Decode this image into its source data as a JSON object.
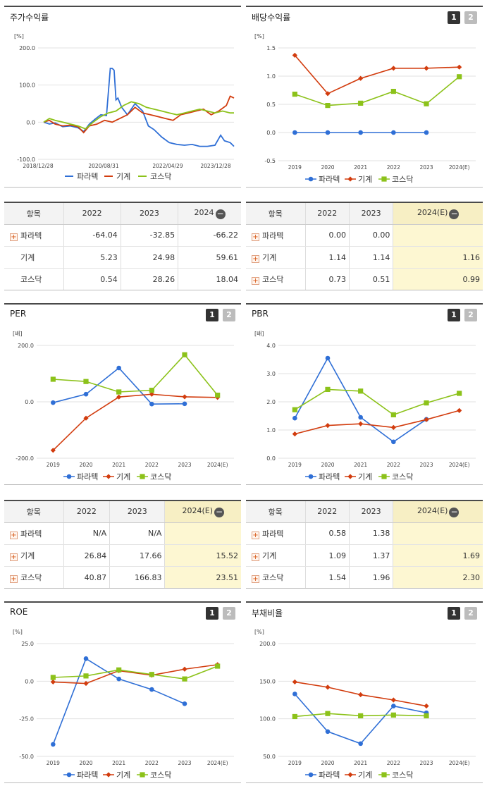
{
  "colors": {
    "para": "#2f6fd6",
    "machine": "#d23c0e",
    "kosdaq": "#8cc21a"
  },
  "legend": [
    "파라텍",
    "기계",
    "코스닥"
  ],
  "panels": {
    "stock": {
      "title": "주가수익률",
      "unit": "[%]",
      "yticks": [
        "200.0",
        "100.0",
        "0.0",
        "-100.0"
      ],
      "xticks": [
        "2018/12/28",
        "2020/08/31",
        "2022/04/29",
        "2023/12/28"
      ]
    },
    "dividend": {
      "title": "배당수익률",
      "unit": "[%]",
      "yticks": [
        "1.5",
        "1.0",
        "0.5",
        "0.0",
        "-0.5"
      ],
      "btn1": "1",
      "btn2": "2"
    },
    "per": {
      "title": "PER",
      "unit": "[배]",
      "yticks": [
        "200.0",
        "0.0",
        "-200.0"
      ],
      "btn1": "1",
      "btn2": "2"
    },
    "pbr": {
      "title": "PBR",
      "unit": "[배]",
      "yticks": [
        "4.0",
        "3.0",
        "2.0",
        "1.0",
        "0.0"
      ],
      "btn1": "1",
      "btn2": "2"
    },
    "roe": {
      "title": "ROE",
      "unit": "[%]",
      "yticks": [
        "25.0",
        "0.0",
        "-25.0",
        "-50.0"
      ],
      "btn1": "1",
      "btn2": "2"
    },
    "debt": {
      "title": "부채비율",
      "unit": "[%]",
      "yticks": [
        "200.0",
        "150.0",
        "100.0",
        "50.0"
      ],
      "btn1": "1",
      "btn2": "2"
    }
  },
  "tables": {
    "stock": {
      "headers": [
        "항목",
        "2022",
        "2023",
        "2024"
      ],
      "rows": [
        {
          "name": "파라텍",
          "v": [
            "-64.04",
            "-32.85",
            "-66.22"
          ]
        },
        {
          "name": "기계",
          "v": [
            "5.23",
            "24.98",
            "59.61"
          ]
        },
        {
          "name": "코스닥",
          "v": [
            "0.54",
            "28.26",
            "18.04"
          ]
        }
      ]
    },
    "dividend": {
      "headers": [
        "항목",
        "2022",
        "2023",
        "2024(E)"
      ],
      "rows": [
        {
          "name": "파라텍",
          "v": [
            "0.00",
            "0.00",
            ""
          ]
        },
        {
          "name": "기계",
          "v": [
            "1.14",
            "1.14",
            "1.16"
          ]
        },
        {
          "name": "코스닥",
          "v": [
            "0.73",
            "0.51",
            "0.99"
          ]
        }
      ]
    },
    "per": {
      "headers": [
        "항목",
        "2022",
        "2023",
        "2024(E)"
      ],
      "rows": [
        {
          "name": "파라텍",
          "v": [
            "N/A",
            "N/A",
            ""
          ]
        },
        {
          "name": "기계",
          "v": [
            "26.84",
            "17.66",
            "15.52"
          ]
        },
        {
          "name": "코스닥",
          "v": [
            "40.87",
            "166.83",
            "23.51"
          ]
        }
      ]
    },
    "pbr": {
      "headers": [
        "항목",
        "2022",
        "2023",
        "2024(E)"
      ],
      "rows": [
        {
          "name": "파라텍",
          "v": [
            "0.58",
            "1.38",
            ""
          ]
        },
        {
          "name": "기계",
          "v": [
            "1.09",
            "1.37",
            "1.69"
          ]
        },
        {
          "name": "코스닥",
          "v": [
            "1.54",
            "1.96",
            "2.30"
          ]
        }
      ]
    }
  },
  "chart_data": [
    {
      "id": "stock",
      "type": "line",
      "title": "주가수익률",
      "ylabel": "[%]",
      "ylim": [
        -100,
        200
      ],
      "x_range": [
        "2018/12/28",
        "2024/06"
      ],
      "series": [
        {
          "name": "파라텍",
          "x": [
            0,
            0.03,
            0.06,
            0.1,
            0.14,
            0.18,
            0.21,
            0.24,
            0.27,
            0.3,
            0.33,
            0.35,
            0.36,
            0.37,
            0.38,
            0.39,
            0.41,
            0.44,
            0.48,
            0.52,
            0.55,
            0.58,
            0.62,
            0.66,
            0.7,
            0.74,
            0.78,
            0.82,
            0.86,
            0.9,
            0.93,
            0.95,
            0.98,
            1
          ],
          "y": [
            0,
            -5,
            -2,
            -12,
            -10,
            -15,
            -25,
            -5,
            8,
            20,
            18,
            145,
            145,
            140,
            60,
            65,
            40,
            20,
            50,
            30,
            -10,
            -20,
            -40,
            -55,
            -60,
            -62,
            -60,
            -65,
            -65,
            -62,
            -35,
            -50,
            -55,
            -65
          ]
        },
        {
          "name": "기계",
          "x": [
            0,
            0.03,
            0.06,
            0.1,
            0.14,
            0.18,
            0.21,
            0.24,
            0.28,
            0.32,
            0.36,
            0.4,
            0.44,
            0.48,
            0.52,
            0.56,
            0.6,
            0.64,
            0.68,
            0.72,
            0.76,
            0.8,
            0.84,
            0.88,
            0.92,
            0.96,
            0.98,
            1
          ],
          "y": [
            0,
            5,
            -5,
            -10,
            -8,
            -12,
            -28,
            -10,
            -5,
            5,
            0,
            10,
            20,
            40,
            25,
            20,
            15,
            10,
            5,
            20,
            25,
            30,
            35,
            20,
            30,
            45,
            70,
            65
          ]
        },
        {
          "name": "코스닥",
          "x": [
            0,
            0.03,
            0.06,
            0.1,
            0.14,
            0.18,
            0.22,
            0.26,
            0.3,
            0.34,
            0.38,
            0.42,
            0.46,
            0.5,
            0.54,
            0.58,
            0.62,
            0.66,
            0.7,
            0.74,
            0.78,
            0.82,
            0.86,
            0.9,
            0.94,
            0.98,
            1
          ],
          "y": [
            0,
            10,
            5,
            0,
            -5,
            -10,
            -18,
            0,
            15,
            25,
            30,
            45,
            55,
            50,
            40,
            35,
            30,
            25,
            20,
            25,
            30,
            35,
            30,
            25,
            30,
            25,
            25
          ]
        }
      ]
    },
    {
      "id": "dividend",
      "type": "line",
      "title": "배당수익률",
      "ylabel": "[%]",
      "ylim": [
        -0.5,
        1.5
      ],
      "categories": [
        "2019",
        "2020",
        "2021",
        "2022",
        "2023",
        "2024(E)"
      ],
      "series": [
        {
          "name": "파라텍",
          "values": [
            0,
            0,
            0,
            0,
            0,
            null
          ]
        },
        {
          "name": "기계",
          "values": [
            1.37,
            0.69,
            0.96,
            1.14,
            1.14,
            1.16
          ]
        },
        {
          "name": "코스닥",
          "values": [
            0.68,
            0.48,
            0.52,
            0.73,
            0.51,
            0.99
          ]
        }
      ]
    },
    {
      "id": "per",
      "type": "line",
      "title": "PER",
      "ylabel": "[배]",
      "ylim": [
        -200,
        200
      ],
      "categories": [
        "2019",
        "2020",
        "2021",
        "2022",
        "2023",
        "2024(E)"
      ],
      "series": [
        {
          "name": "파라텍",
          "values": [
            -3,
            27,
            120,
            -8,
            -7,
            null
          ]
        },
        {
          "name": "기계",
          "values": [
            -172,
            -58,
            17,
            26.84,
            17.66,
            15.52
          ]
        },
        {
          "name": "코스닥",
          "values": [
            80,
            72,
            35,
            40.87,
            166.83,
            23.51
          ]
        }
      ]
    },
    {
      "id": "pbr",
      "type": "line",
      "title": "PBR",
      "ylabel": "[배]",
      "ylim": [
        0,
        4
      ],
      "categories": [
        "2019",
        "2020",
        "2021",
        "2022",
        "2023",
        "2024(E)"
      ],
      "series": [
        {
          "name": "파라텍",
          "values": [
            1.42,
            3.55,
            1.45,
            0.58,
            1.38,
            null
          ]
        },
        {
          "name": "기계",
          "values": [
            0.86,
            1.16,
            1.22,
            1.09,
            1.37,
            1.69
          ]
        },
        {
          "name": "코스닥",
          "values": [
            1.72,
            2.44,
            2.38,
            1.54,
            1.96,
            2.3
          ]
        }
      ]
    },
    {
      "id": "roe",
      "type": "line",
      "title": "ROE",
      "ylabel": "[%]",
      "ylim": [
        -50,
        25
      ],
      "categories": [
        "2019",
        "2020",
        "2021",
        "2022",
        "2023",
        "2024(E)"
      ],
      "series": [
        {
          "name": "파라텍",
          "values": [
            -42,
            15,
            1.5,
            -5.5,
            -15,
            null
          ]
        },
        {
          "name": "기계",
          "values": [
            -0.5,
            -1.5,
            7,
            4,
            8,
            11
          ]
        },
        {
          "name": "코스닥",
          "values": [
            2.5,
            3.5,
            7.5,
            4.5,
            1.5,
            10
          ]
        }
      ]
    },
    {
      "id": "debt",
      "type": "line",
      "title": "부채비율",
      "ylabel": "[%]",
      "ylim": [
        50,
        200
      ],
      "categories": [
        "2019",
        "2020",
        "2021",
        "2022",
        "2023",
        "2024(E)"
      ],
      "series": [
        {
          "name": "파라텍",
          "values": [
            133,
            83,
            67,
            117,
            108,
            null
          ]
        },
        {
          "name": "기계",
          "values": [
            149,
            142,
            132,
            125,
            117,
            null
          ]
        },
        {
          "name": "코스닥",
          "values": [
            103,
            107,
            104,
            105,
            104,
            null
          ]
        }
      ]
    }
  ]
}
